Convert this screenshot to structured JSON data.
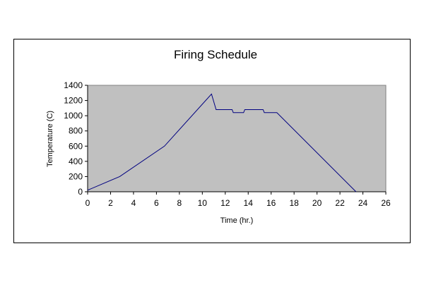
{
  "chart_data": {
    "type": "line",
    "title": "Firing Schedule",
    "xlabel": "Time (hr.)",
    "ylabel": "Temperature (C)",
    "xlim": [
      0,
      26
    ],
    "ylim": [
      0,
      1400
    ],
    "x_ticks": [
      0,
      2,
      4,
      6,
      8,
      10,
      12,
      14,
      16,
      18,
      20,
      22,
      24,
      26
    ],
    "y_ticks": [
      0,
      200,
      400,
      600,
      800,
      1000,
      1200,
      1400
    ],
    "grid": false,
    "legend": "none",
    "plot_background": "#C0C0C0",
    "line_color": "#000080",
    "series": [
      {
        "x": [
          0,
          2.8,
          6.7,
          10.8,
          11.2,
          12.6,
          12.7,
          13.6,
          13.7,
          15.3,
          15.4,
          16.5,
          23.4
        ],
        "y": [
          20,
          200,
          600,
          1285,
          1080,
          1080,
          1040,
          1040,
          1080,
          1080,
          1040,
          1040,
          0
        ]
      }
    ]
  }
}
